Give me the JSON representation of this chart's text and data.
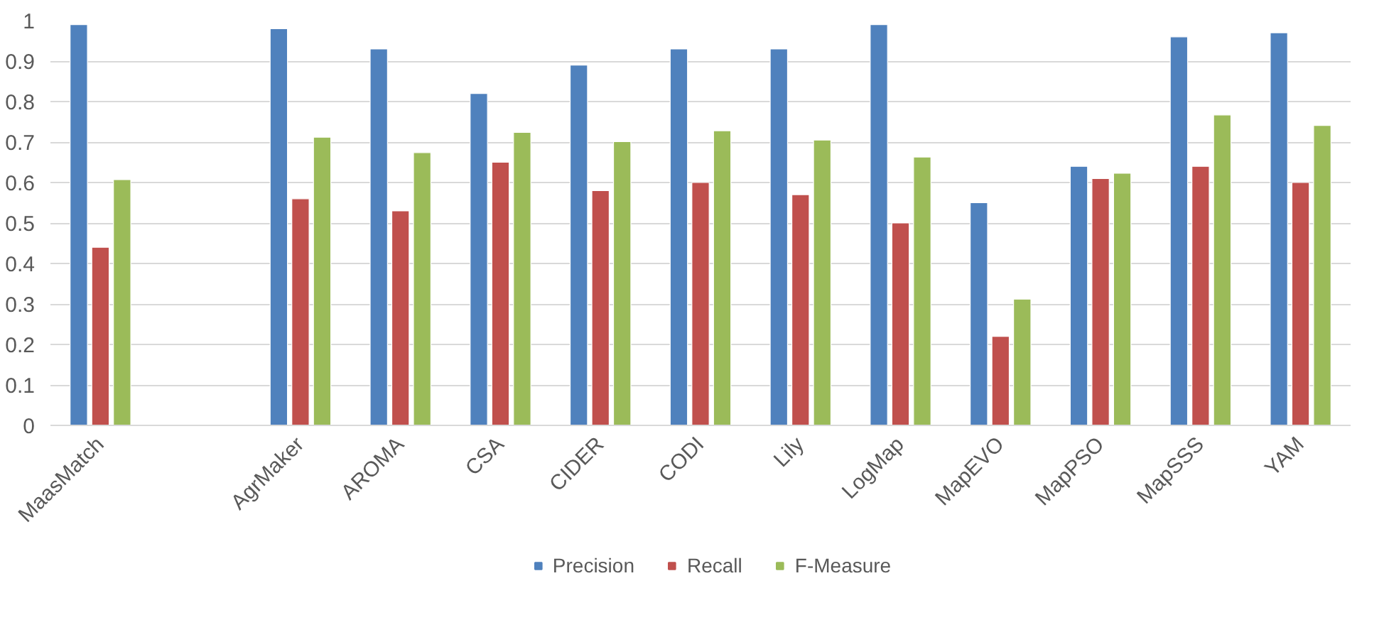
{
  "chart_data": {
    "type": "bar",
    "categories": [
      "MaasMatch",
      null,
      "AgrMaker",
      "AROMA",
      "CSA",
      "CIDER",
      "CODI",
      "Lily",
      "LogMap",
      "MapEVO",
      "MapPSO",
      "MapSSS",
      "YAM"
    ],
    "series": [
      {
        "name": "Precision",
        "color": "#4f81bd",
        "values": [
          0.99,
          null,
          0.98,
          0.93,
          0.82,
          0.89,
          0.93,
          0.93,
          0.99,
          0.55,
          0.64,
          0.96,
          0.97
        ]
      },
      {
        "name": "Recall",
        "color": "#c0504d",
        "values": [
          0.44,
          null,
          0.56,
          0.53,
          0.65,
          0.58,
          0.6,
          0.57,
          0.5,
          0.22,
          0.61,
          0.64,
          0.6
        ]
      },
      {
        "name": "F-Measure",
        "color": "#9bbb59",
        "values": [
          0.607,
          null,
          0.712,
          0.674,
          0.724,
          0.701,
          0.728,
          0.705,
          0.663,
          0.312,
          0.623,
          0.767,
          0.741
        ]
      }
    ],
    "ylim": [
      0,
      1
    ],
    "yticks": [
      0,
      0.1,
      0.2,
      0.3,
      0.4,
      0.5,
      0.6,
      0.7,
      0.8,
      0.9,
      1
    ],
    "grid": "y",
    "legend": "bottom"
  }
}
